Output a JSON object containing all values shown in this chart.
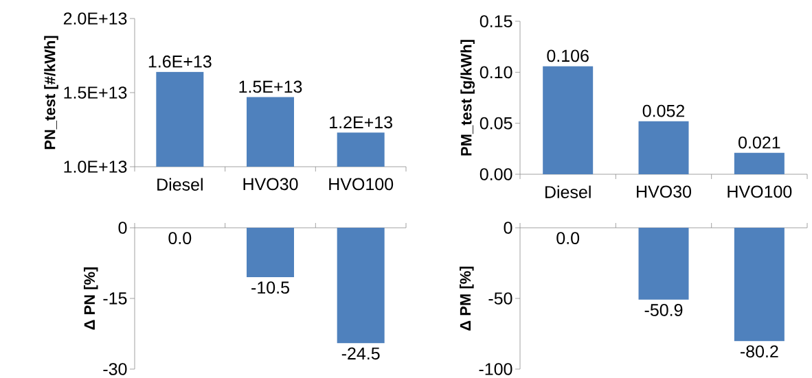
{
  "chart_data": [
    {
      "type": "bar",
      "ylabel": "PN_test [#/kWh]",
      "categories": [
        "Diesel",
        "HVO30",
        "HVO100"
      ],
      "values": [
        16400000000000.0,
        14700000000000.0,
        12300000000000.0
      ],
      "color": "#4f81bd",
      "value_labels": [
        "1.6E+13",
        "1.5E+13",
        "1.2E+13"
      ],
      "ylim": [
        10000000000000.0,
        20000000000000.0
      ],
      "yticks": [
        {
          "value": 10000000000000.0,
          "label": "1.0E+13"
        },
        {
          "value": 15000000000000.0,
          "label": "1.5E+13"
        },
        {
          "value": 20000000000000.0,
          "label": "2.0E+13"
        }
      ]
    },
    {
      "type": "bar",
      "ylabel": "PM_test  [g/kWh]",
      "categories": [
        "Diesel",
        "HVO30",
        "HVO100"
      ],
      "values": [
        0.106,
        0.052,
        0.021
      ],
      "color": "#4f81bd",
      "data_labels": true,
      "ylim": [
        0,
        0.15
      ],
      "yticks": [
        {
          "value": 0,
          "label": "0.00"
        },
        {
          "value": 0.05,
          "label": "0.05"
        },
        {
          "value": 0.1,
          "label": "0.10"
        },
        {
          "value": 0.15,
          "label": "0.15"
        }
      ]
    },
    {
      "type": "bar",
      "ylabel": "Δ PN [%]",
      "categories": [
        null,
        null,
        null
      ],
      "values": [
        0,
        -10.5,
        -24.5
      ],
      "color": "#4f81bd",
      "value_labels": [
        "0.0",
        "-10.5",
        "-24.5"
      ],
      "ylim": [
        -30,
        0
      ],
      "yticks": [
        -30,
        -15,
        0
      ],
      "tick_labels": "y"
    },
    {
      "type": "bar",
      "ylabel": "Δ PM [%]",
      "categories": [
        null,
        null,
        null
      ],
      "values": [
        0,
        -50.9,
        -80.2
      ],
      "color": "#4f81bd",
      "value_labels": [
        "0.0",
        "-50.9",
        "-80.2"
      ],
      "ylim": [
        -100,
        0
      ],
      "yticks": [
        -100,
        -50,
        0
      ],
      "tick_labels": "y"
    }
  ]
}
